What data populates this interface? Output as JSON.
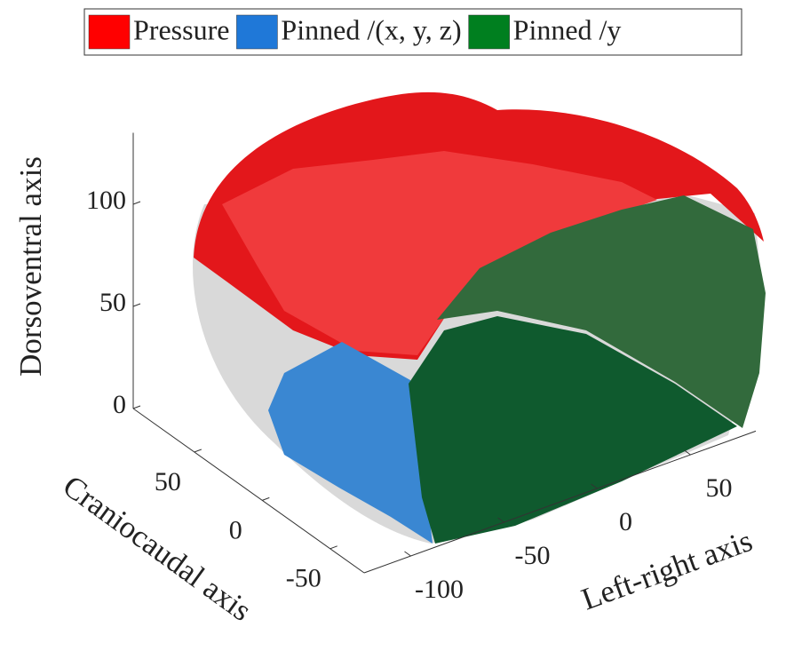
{
  "chart_data": {
    "type": "surface3d",
    "legend": [
      {
        "name": "Pressure",
        "color": "#ff0000"
      },
      {
        "name": "Pinned /(x, y, z)",
        "color": "#1f78d8"
      },
      {
        "name": "Pinned /y",
        "color": "#007f1f"
      }
    ],
    "xlabel": "Left-right axis",
    "ylabel": "Craniocaudal axis",
    "zlabel": "Dorsoventral axis",
    "xlim": [
      -125,
      85
    ],
    "xticks": [
      -100,
      -50,
      0,
      50
    ],
    "ylim": [
      -75,
      95
    ],
    "yticks": [
      -50,
      0,
      50
    ],
    "zlim": [
      0,
      135
    ],
    "zticks": [
      0,
      50,
      100
    ]
  }
}
